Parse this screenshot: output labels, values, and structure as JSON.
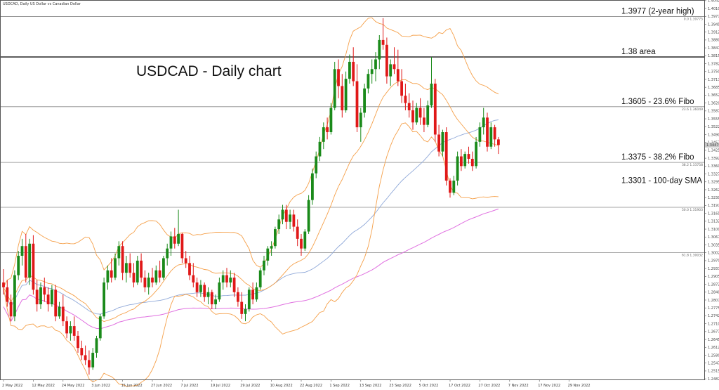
{
  "chart_data": {
    "type": "candlestick",
    "header": "USDCAD, Daily   US Dollar vs Canadian Dollar",
    "title": "USDCAD - Daily chart",
    "ylim": [
      1.248,
      1.4042
    ],
    "y_ticks": [
      "1.40425",
      "1.40100",
      "1.39775",
      "1.39450",
      "1.39125",
      "1.38800",
      "1.38475",
      "1.38150",
      "1.37825",
      "1.37500",
      "1.37175",
      "1.36850",
      "1.36525",
      "1.36200",
      "1.35875",
      "1.35550",
      "1.35225",
      "1.34900",
      "1.34575",
      "1.34250",
      "1.33925",
      "1.33600",
      "1.33275",
      "1.32950",
      "1.32625",
      "1.32300",
      "1.31975",
      "1.31650",
      "1.31325",
      "1.31000",
      "1.30675",
      "1.30350",
      "1.30025",
      "1.29700",
      "1.29375",
      "1.29050",
      "1.28725",
      "1.28400",
      "1.28075",
      "1.27750",
      "1.27425",
      "1.27100",
      "1.26775",
      "1.26450",
      "1.26125",
      "1.25800",
      "1.25475",
      "1.25150",
      "1.24825"
    ],
    "x_ticks": [
      {
        "label": "2 May 2022",
        "i": 0
      },
      {
        "label": "12 May 2022",
        "i": 8
      },
      {
        "label": "24 May 2022",
        "i": 16
      },
      {
        "label": "3 Jun 2022",
        "i": 24
      },
      {
        "label": "15 Jun 2022",
        "i": 32
      },
      {
        "label": "27 Jun 2022",
        "i": 40
      },
      {
        "label": "7 Jul 2022",
        "i": 48
      },
      {
        "label": "19 Jul 2022",
        "i": 56
      },
      {
        "label": "29 Jul 2022",
        "i": 64
      },
      {
        "label": "10 Aug 2022",
        "i": 72
      },
      {
        "label": "22 Aug 2022",
        "i": 80
      },
      {
        "label": "1 Sep 2022",
        "i": 88
      },
      {
        "label": "13 Sep 2022",
        "i": 96
      },
      {
        "label": "23 Sep 2022",
        "i": 104
      },
      {
        "label": "5 Oct 2022",
        "i": 112
      },
      {
        "label": "17 Oct 2022",
        "i": 120
      },
      {
        "label": "27 Oct 2022",
        "i": 128
      },
      {
        "label": "7 Nov 2022",
        "i": 136
      },
      {
        "label": "17 Nov 2022",
        "i": 144
      },
      {
        "label": "29 Nov 2022",
        "i": 152
      }
    ],
    "hlines": [
      {
        "value": 1.3977,
        "label": "1.3977 (2-year high)",
        "small": "0.0 1.39775",
        "color": "#888888",
        "ann_color": "#111111"
      },
      {
        "value": 1.381,
        "label": "1.38 area",
        "small": "",
        "color": "#111111",
        "ann_color": "#111111"
      },
      {
        "value": 1.3605,
        "label": "1.3605 - 23.6% Fibo",
        "small": "23.6 1.36049",
        "color": "#888888",
        "ann_color": "#111111"
      },
      {
        "value": 1.3375,
        "label": "1.3375 - 38.2% Fibo",
        "small": "38.2 1.33758",
        "color": "#888888",
        "ann_color": "#111111"
      },
      {
        "value": 1.319,
        "label": "",
        "small": "50.0 1.31903",
        "color": "#888888",
        "ann_color": "#111111"
      },
      {
        "value": 1.3003,
        "label": "",
        "small": "61.8 1.30032",
        "color": "#888888",
        "ann_color": "#111111"
      }
    ],
    "sma_label": "1.3301 - 100-day SMA",
    "last_price": "1.34470",
    "colors": {
      "bull": "#1a8a1a",
      "bear": "#e01818",
      "bollinger": "#f5a04a",
      "ma_blue": "#8fa8d8",
      "sma_magenta": "#e070e0",
      "sma_label": "#d060d0"
    },
    "candles": [
      [
        1.288,
        1.2935,
        1.283,
        1.286
      ],
      [
        1.286,
        1.289,
        1.278,
        1.28
      ],
      [
        1.28,
        1.283,
        1.272,
        1.274
      ],
      [
        1.274,
        1.293,
        1.272,
        1.291
      ],
      [
        1.291,
        1.301,
        1.289,
        1.299
      ],
      [
        1.299,
        1.306,
        1.295,
        1.303
      ],
      [
        1.303,
        1.308,
        1.288,
        1.29
      ],
      [
        1.29,
        1.306,
        1.287,
        1.304
      ],
      [
        1.304,
        1.3075,
        1.283,
        1.285
      ],
      [
        1.285,
        1.289,
        1.276,
        1.279
      ],
      [
        1.279,
        1.288,
        1.277,
        1.286
      ],
      [
        1.286,
        1.29,
        1.28,
        1.283
      ],
      [
        1.283,
        1.286,
        1.276,
        1.279
      ],
      [
        1.279,
        1.287,
        1.278,
        1.285
      ],
      [
        1.285,
        1.287,
        1.272,
        1.274
      ],
      [
        1.274,
        1.28,
        1.273,
        1.278
      ],
      [
        1.278,
        1.283,
        1.27,
        1.272
      ],
      [
        1.272,
        1.274,
        1.265,
        1.267
      ],
      [
        1.267,
        1.272,
        1.264,
        1.27
      ],
      [
        1.27,
        1.274,
        1.264,
        1.266
      ],
      [
        1.266,
        1.268,
        1.259,
        1.261
      ],
      [
        1.261,
        1.264,
        1.256,
        1.258
      ],
      [
        1.258,
        1.262,
        1.254,
        1.256
      ],
      [
        1.256,
        1.26,
        1.25,
        1.253
      ],
      [
        1.253,
        1.261,
        1.252,
        1.259
      ],
      [
        1.259,
        1.266,
        1.257,
        1.265
      ],
      [
        1.265,
        1.275,
        1.264,
        1.274
      ],
      [
        1.274,
        1.29,
        1.273,
        1.288
      ],
      [
        1.288,
        1.295,
        1.285,
        1.293
      ],
      [
        1.293,
        1.298,
        1.288,
        1.29
      ],
      [
        1.29,
        1.3,
        1.289,
        1.298
      ],
      [
        1.298,
        1.305,
        1.295,
        1.303
      ],
      [
        1.303,
        1.305,
        1.289,
        1.292
      ],
      [
        1.292,
        1.299,
        1.288,
        1.296
      ],
      [
        1.296,
        1.3,
        1.29,
        1.292
      ],
      [
        1.292,
        1.296,
        1.286,
        1.288
      ],
      [
        1.288,
        1.299,
        1.287,
        1.297
      ],
      [
        1.297,
        1.3,
        1.288,
        1.29
      ],
      [
        1.29,
        1.293,
        1.284,
        1.286
      ],
      [
        1.286,
        1.292,
        1.283,
        1.29
      ],
      [
        1.29,
        1.294,
        1.286,
        1.288
      ],
      [
        1.288,
        1.295,
        1.287,
        1.293
      ],
      [
        1.293,
        1.297,
        1.288,
        1.29
      ],
      [
        1.29,
        1.299,
        1.289,
        1.298
      ],
      [
        1.298,
        1.304,
        1.295,
        1.302
      ],
      [
        1.302,
        1.309,
        1.299,
        1.307
      ],
      [
        1.307,
        1.3105,
        1.302,
        1.304
      ],
      [
        1.304,
        1.318,
        1.303,
        1.308
      ],
      [
        1.308,
        1.3085,
        1.296,
        1.298
      ],
      [
        1.298,
        1.301,
        1.294,
        1.296
      ],
      [
        1.296,
        1.299,
        1.289,
        1.291
      ],
      [
        1.291,
        1.296,
        1.286,
        1.288
      ],
      [
        1.288,
        1.29,
        1.282,
        1.284
      ],
      [
        1.284,
        1.289,
        1.282,
        1.287
      ],
      [
        1.287,
        1.288,
        1.28,
        1.282
      ],
      [
        1.282,
        1.286,
        1.279,
        1.284
      ],
      [
        1.284,
        1.285,
        1.277,
        1.279
      ],
      [
        1.279,
        1.283,
        1.277,
        1.281
      ],
      [
        1.281,
        1.29,
        1.28,
        1.288
      ],
      [
        1.288,
        1.293,
        1.285,
        1.291
      ],
      [
        1.291,
        1.294,
        1.286,
        1.288
      ],
      [
        1.288,
        1.293,
        1.286,
        1.29
      ],
      [
        1.29,
        1.292,
        1.282,
        1.284
      ],
      [
        1.284,
        1.286,
        1.278,
        1.28
      ],
      [
        1.28,
        1.284,
        1.273,
        1.275
      ],
      [
        1.275,
        1.279,
        1.272,
        1.277
      ],
      [
        1.277,
        1.286,
        1.276,
        1.285
      ],
      [
        1.285,
        1.288,
        1.279,
        1.281
      ],
      [
        1.281,
        1.288,
        1.28,
        1.286
      ],
      [
        1.286,
        1.294,
        1.285,
        1.293
      ],
      [
        1.293,
        1.299,
        1.291,
        1.297
      ],
      [
        1.297,
        1.303,
        1.295,
        1.302
      ],
      [
        1.302,
        1.305,
        1.299,
        1.303
      ],
      [
        1.303,
        1.311,
        1.302,
        1.31
      ],
      [
        1.31,
        1.316,
        1.308,
        1.314
      ],
      [
        1.314,
        1.32,
        1.312,
        1.318
      ],
      [
        1.318,
        1.32,
        1.31,
        1.313
      ],
      [
        1.313,
        1.318,
        1.31,
        1.316
      ],
      [
        1.316,
        1.318,
        1.309,
        1.311
      ],
      [
        1.311,
        1.314,
        1.303,
        1.306
      ],
      [
        1.306,
        1.308,
        1.299,
        1.302
      ],
      [
        1.302,
        1.31,
        1.301,
        1.309
      ],
      [
        1.309,
        1.324,
        1.308,
        1.322
      ],
      [
        1.322,
        1.335,
        1.32,
        1.333
      ],
      [
        1.333,
        1.342,
        1.331,
        1.34
      ],
      [
        1.34,
        1.348,
        1.338,
        1.346
      ],
      [
        1.346,
        1.354,
        1.343,
        1.352
      ],
      [
        1.352,
        1.356,
        1.347,
        1.35
      ],
      [
        1.35,
        1.362,
        1.349,
        1.36
      ],
      [
        1.36,
        1.379,
        1.359,
        1.376
      ],
      [
        1.376,
        1.38,
        1.364,
        1.369
      ],
      [
        1.369,
        1.374,
        1.356,
        1.359
      ],
      [
        1.359,
        1.375,
        1.358,
        1.372
      ],
      [
        1.372,
        1.382,
        1.37,
        1.379
      ],
      [
        1.379,
        1.385,
        1.369,
        1.371
      ],
      [
        1.371,
        1.378,
        1.35,
        1.352
      ],
      [
        1.352,
        1.36,
        1.346,
        1.358
      ],
      [
        1.358,
        1.37,
        1.356,
        1.368
      ],
      [
        1.368,
        1.376,
        1.366,
        1.374
      ],
      [
        1.374,
        1.38,
        1.37,
        1.376
      ],
      [
        1.376,
        1.383,
        1.371,
        1.38
      ],
      [
        1.38,
        1.39,
        1.376,
        1.388
      ],
      [
        1.388,
        1.397,
        1.384,
        1.386
      ],
      [
        1.386,
        1.389,
        1.37,
        1.373
      ],
      [
        1.373,
        1.38,
        1.369,
        1.378
      ],
      [
        1.378,
        1.385,
        1.374,
        1.376
      ],
      [
        1.376,
        1.384,
        1.369,
        1.371
      ],
      [
        1.371,
        1.376,
        1.362,
        1.365
      ],
      [
        1.365,
        1.37,
        1.359,
        1.362
      ],
      [
        1.362,
        1.366,
        1.356,
        1.359
      ],
      [
        1.359,
        1.363,
        1.351,
        1.354
      ],
      [
        1.354,
        1.362,
        1.353,
        1.36
      ],
      [
        1.36,
        1.364,
        1.353,
        1.356
      ],
      [
        1.356,
        1.36,
        1.35,
        1.353
      ],
      [
        1.353,
        1.363,
        1.352,
        1.361
      ],
      [
        1.361,
        1.381,
        1.36,
        1.37
      ],
      [
        1.37,
        1.372,
        1.346,
        1.349
      ],
      [
        1.349,
        1.353,
        1.34,
        1.342
      ],
      [
        1.342,
        1.351,
        1.34,
        1.35
      ],
      [
        1.35,
        1.352,
        1.328,
        1.33
      ],
      [
        1.33,
        1.331,
        1.323,
        1.325
      ],
      [
        1.325,
        1.332,
        1.324,
        1.33
      ],
      [
        1.33,
        1.342,
        1.328,
        1.34
      ],
      [
        1.34,
        1.343,
        1.334,
        1.336
      ],
      [
        1.336,
        1.342,
        1.335,
        1.341
      ],
      [
        1.341,
        1.344,
        1.337,
        1.339
      ],
      [
        1.339,
        1.342,
        1.334,
        1.336
      ],
      [
        1.336,
        1.348,
        1.335,
        1.346
      ],
      [
        1.346,
        1.354,
        1.344,
        1.352
      ],
      [
        1.352,
        1.36,
        1.349,
        1.356
      ],
      [
        1.356,
        1.358,
        1.342,
        1.344
      ],
      [
        1.344,
        1.354,
        1.343,
        1.352
      ],
      [
        1.352,
        1.353,
        1.344,
        1.347
      ],
      [
        1.347,
        1.348,
        1.341,
        1.3447
      ]
    ]
  }
}
